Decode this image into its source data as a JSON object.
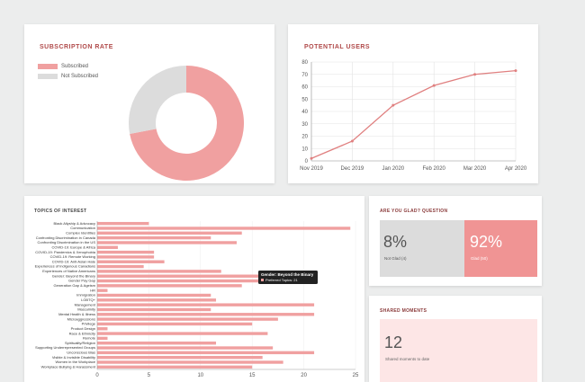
{
  "subscription": {
    "title": "SUBSCRIPTION RATE",
    "legend": [
      {
        "label": "Subscribed",
        "color": "#f0a0a0"
      },
      {
        "label": "Not Subscribed",
        "color": "#dcdcdc"
      }
    ],
    "chart_data": {
      "type": "pie",
      "labels": [
        "Subscribed",
        "Not Subscribed"
      ],
      "values": [
        0.72,
        0.28
      ],
      "colors": [
        "#f0a0a0",
        "#dcdcdc"
      ]
    }
  },
  "potential": {
    "title": "POTENTIAL USERS",
    "chart_data": {
      "type": "line",
      "categories": [
        "Nov 2019",
        "Dec 2019",
        "Jan 2020",
        "Feb 2020",
        "Mar 2020",
        "Apr 2020"
      ],
      "values": [
        2,
        16,
        45,
        61,
        70,
        73
      ],
      "ylim": [
        0,
        80
      ],
      "yticks": [
        "0",
        "10",
        "20",
        "30",
        "40",
        "50",
        "60",
        "70",
        "80"
      ],
      "grid": true,
      "color": "#e08080"
    }
  },
  "topics": {
    "title": "TOPICS OF INTEREST",
    "tooltip": {
      "title": "Gender: Beyond the Binary",
      "line": "Preferred Topics: 21"
    },
    "chart_data": {
      "type": "bar",
      "orientation": "horizontal",
      "categories": [
        "Black Allyship & Advocacy",
        "Communication",
        "Complex Identities",
        "Confronting Discrimination in Canada",
        "Confronting Discrimination in the US",
        "COVID-19: Europe & Africa",
        "COVID-19: Pandemics & Xenophobia",
        "COVID-19: Remote Working",
        "COVID-19: Anti-Asian Hate",
        "Experiences of Indigenous Canadians",
        "Experiences of Native Americans",
        "Gender: Beyond the Binary",
        "Gender Pay Gap",
        "Generation Gap & Ageism",
        "HR",
        "Immigration",
        "LGBTQ+",
        "Management",
        "Masculinity",
        "Mental Health & Illness",
        "Microaggressions",
        "Privilege",
        "Product Design",
        "Race & Ethnicity",
        "Remote",
        "Spirituality/Religion",
        "Supporting Underrepresented Groups",
        "Unconscious Bias",
        "Visible & Invisible Disability",
        "Women in the Workplace",
        "Workplace Bullying & Harassment"
      ],
      "values": [
        5,
        24.5,
        14,
        11,
        13.5,
        2,
        5.5,
        5.5,
        6.5,
        4.5,
        12,
        21,
        16.5,
        14,
        1,
        11,
        11.5,
        21,
        11,
        21,
        17.5,
        15,
        1,
        16.5,
        1,
        11.5,
        17,
        21,
        16,
        18,
        15
      ],
      "xlim": [
        0,
        25
      ],
      "xticks": [
        "0",
        "5",
        "10",
        "15",
        "20",
        "25"
      ],
      "color": "#f0a0a0"
    }
  },
  "glad": {
    "title": "ARE YOU GLAD? QUESTION",
    "left": {
      "value": "8%",
      "label": "Not Glad (4)"
    },
    "right": {
      "value": "92%",
      "label": "Glad (50)"
    }
  },
  "moments": {
    "title": "SHARED MOMENTS",
    "value": "12",
    "label": "Shared moments to date"
  }
}
